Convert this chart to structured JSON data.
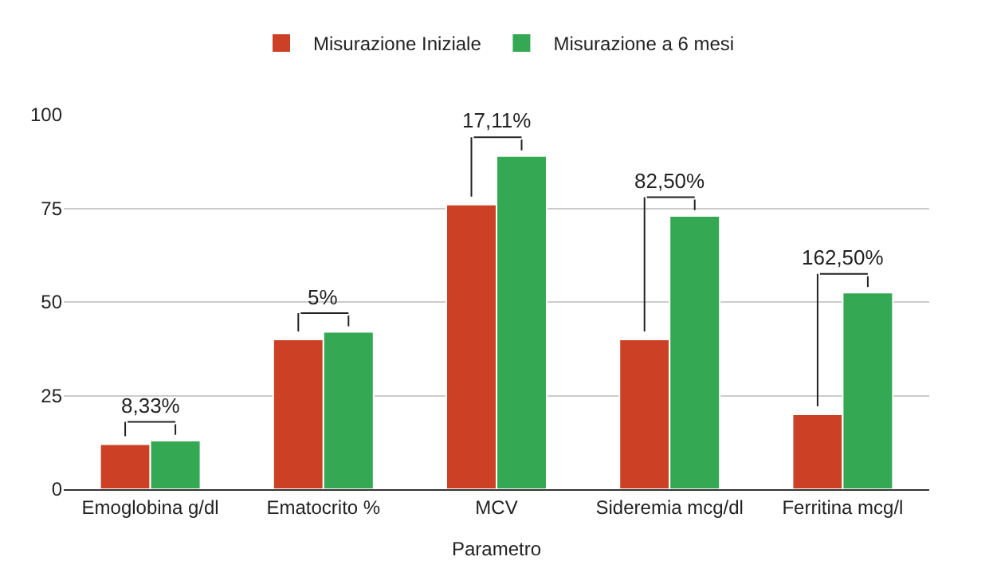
{
  "chart_data": {
    "type": "bar",
    "xlabel": "Parametro",
    "categories": [
      "Emoglobina g/dl",
      "Ematocrito %",
      "MCV",
      "Sideremia mcg/dl",
      "Ferritina mcg/l"
    ],
    "series": [
      {
        "name": "Misurazione Iniziale",
        "color": "#cc4125",
        "values": [
          12,
          40,
          76,
          40,
          20
        ]
      },
      {
        "name": "Misurazione a 6 mesi",
        "color": "#34a853",
        "values": [
          13,
          42,
          89,
          73,
          52.5
        ]
      }
    ],
    "ylim": [
      0,
      100
    ],
    "yticks": [
      0,
      25,
      50,
      75,
      100
    ],
    "grid": "y",
    "legend": "top",
    "annotations": [
      "8,33%",
      "5%",
      "17,11%",
      "82,50%",
      "162,50%"
    ]
  }
}
